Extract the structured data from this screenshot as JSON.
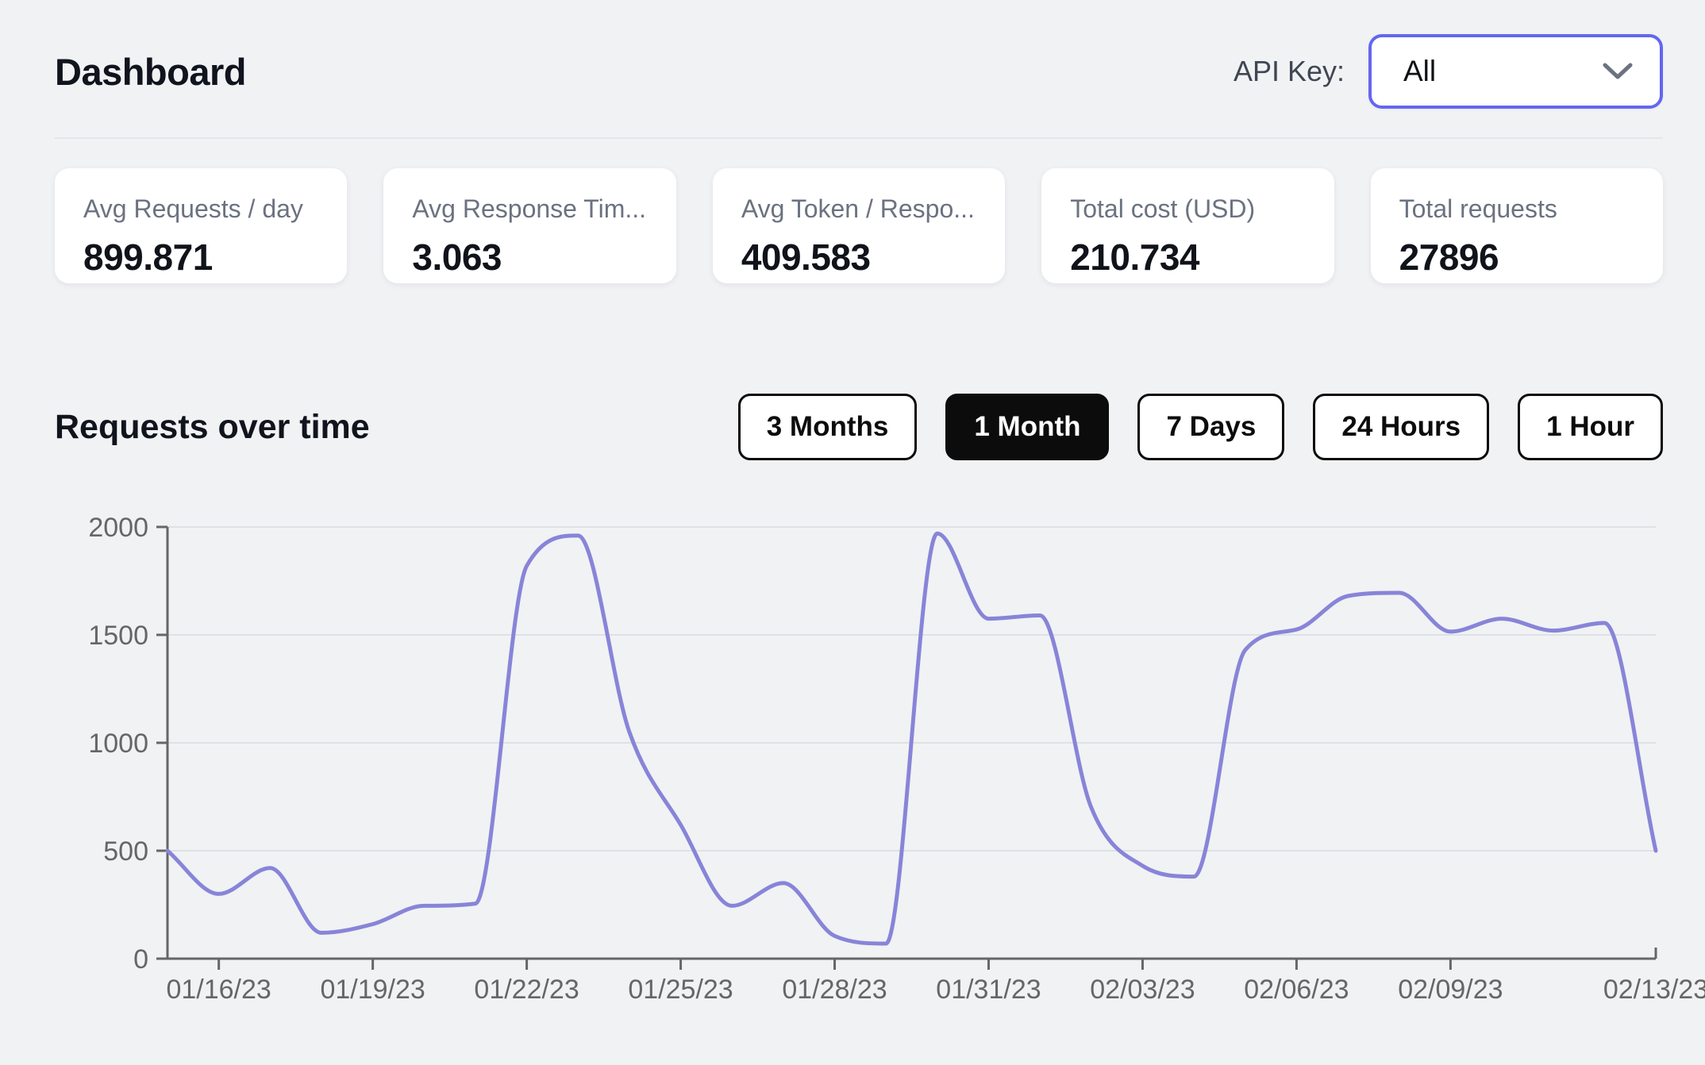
{
  "page": {
    "title": "Dashboard"
  },
  "api_key": {
    "label": "API Key:",
    "value": "All"
  },
  "stats": [
    {
      "label": "Avg Requests / day",
      "value": "899.871"
    },
    {
      "label": "Avg Response Tim...",
      "value": "3.063"
    },
    {
      "label": "Avg Token / Respo...",
      "value": "409.583"
    },
    {
      "label": "Total cost (USD)",
      "value": "210.734"
    },
    {
      "label": "Total requests",
      "value": "27896"
    }
  ],
  "section": {
    "title": "Requests over time"
  },
  "range_buttons": [
    {
      "label": "3 Months",
      "active": false
    },
    {
      "label": "1 Month",
      "active": true
    },
    {
      "label": "7 Days",
      "active": false
    },
    {
      "label": "24 Hours",
      "active": false
    },
    {
      "label": "1 Hour",
      "active": false
    }
  ],
  "chart_data": {
    "type": "line",
    "title": "Requests over time",
    "xlabel": "",
    "ylabel": "",
    "ylim": [
      0,
      2000
    ],
    "grid": "horizontal",
    "legend_position": "none",
    "line_color": "#8884d8",
    "axis_color": "#666666",
    "grid_color": "#dee1e5",
    "y_ticks": [
      0,
      500,
      1000,
      1500,
      2000
    ],
    "x_ticks": [
      "01/16/23",
      "01/19/23",
      "01/22/23",
      "01/25/23",
      "01/28/23",
      "01/31/23",
      "02/03/23",
      "02/06/23",
      "02/09/23",
      "02/13/23"
    ],
    "x": [
      "01/15/23",
      "01/16/23",
      "01/17/23",
      "01/18/23",
      "01/19/23",
      "01/20/23",
      "01/21/23",
      "01/22/23",
      "01/23/23",
      "01/24/23",
      "01/25/23",
      "01/26/23",
      "01/27/23",
      "01/28/23",
      "01/29/23",
      "01/30/23",
      "01/31/23",
      "02/01/23",
      "02/02/23",
      "02/03/23",
      "02/04/23",
      "02/05/23",
      "02/06/23",
      "02/07/23",
      "02/08/23",
      "02/09/23",
      "02/10/23",
      "02/11/23",
      "02/12/23",
      "02/13/23"
    ],
    "values": [
      500,
      300,
      420,
      120,
      160,
      245,
      255,
      1820,
      1960,
      1050,
      620,
      245,
      350,
      105,
      70,
      1970,
      1575,
      1590,
      700,
      430,
      380,
      1430,
      1525,
      1680,
      1695,
      1515,
      1575,
      1520,
      1555,
      500
    ]
  }
}
